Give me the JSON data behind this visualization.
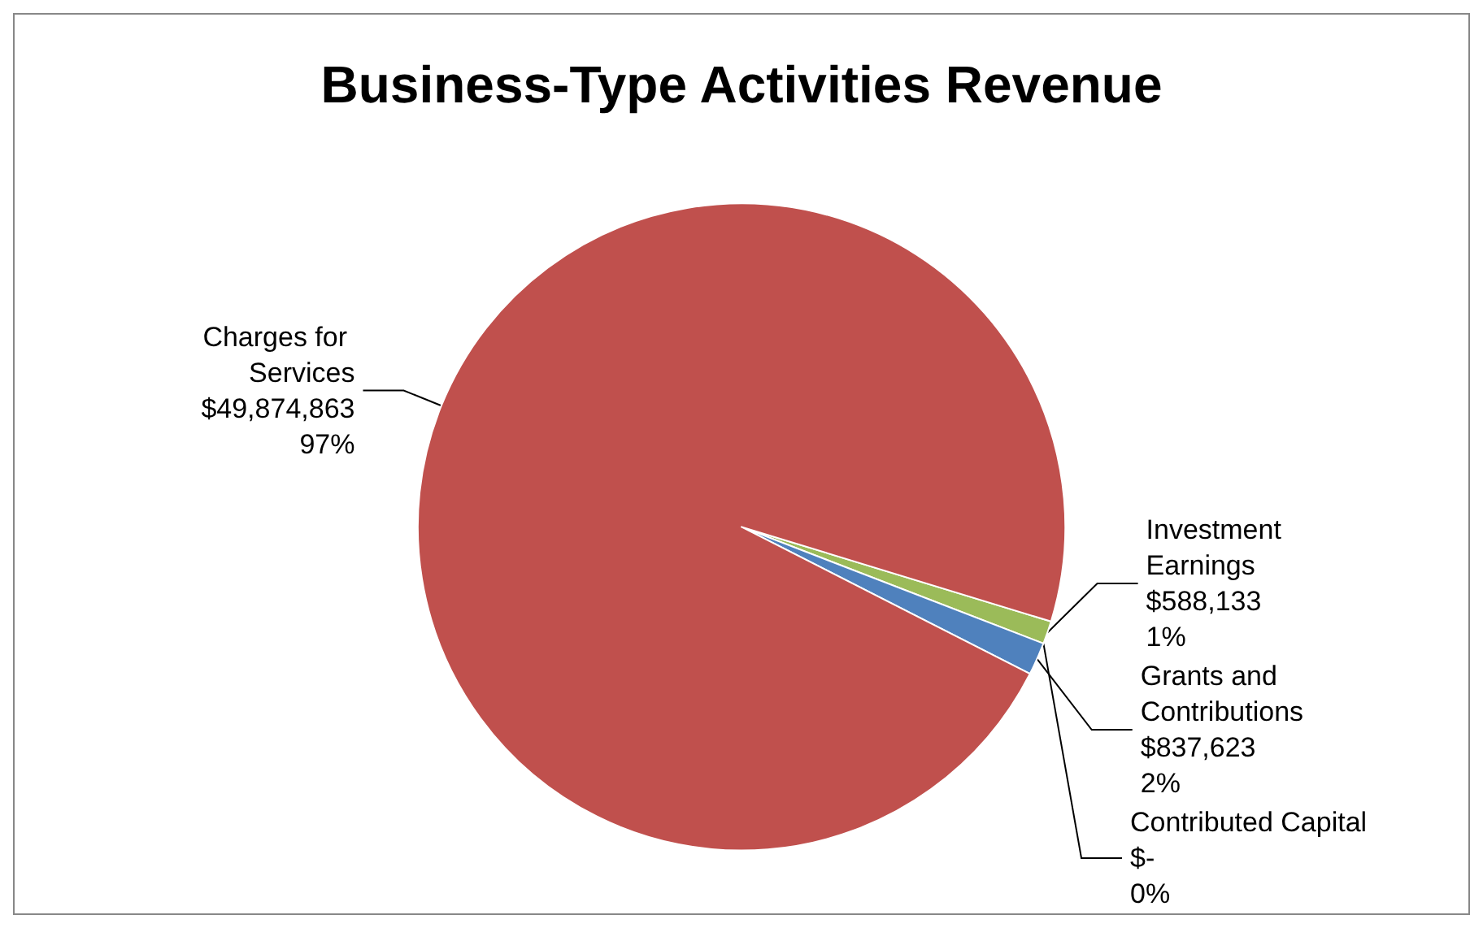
{
  "chart_data": {
    "type": "pie",
    "title": "Business-Type Activities Revenue",
    "categories": [
      "Investment Earnings",
      "Contributed Capital",
      "Grants and Contributions",
      "Charges for Services"
    ],
    "values": [
      588133,
      0,
      837623,
      49874863
    ],
    "colors": [
      "#9bbb59",
      "#8064a2",
      "#4f81bd",
      "#c0504d"
    ],
    "value_labels": [
      "$588,133\n1%",
      "$-\n0%",
      "$837,623\n2%",
      "$49,874,863\n97%"
    ],
    "legend": false
  }
}
